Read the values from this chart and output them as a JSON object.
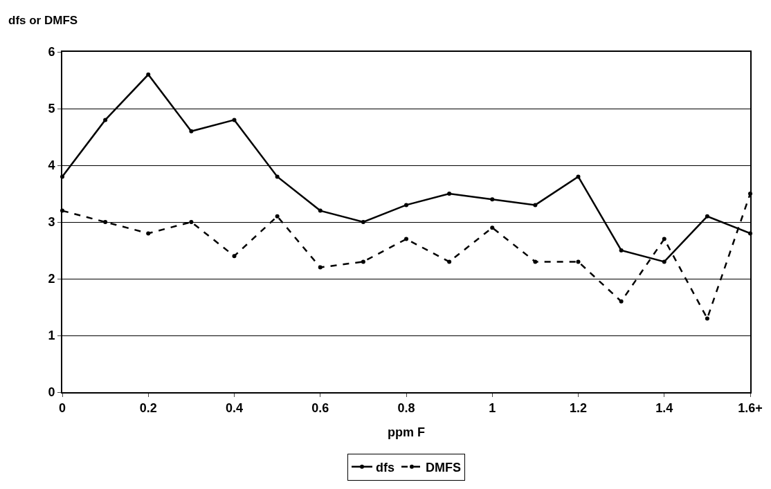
{
  "chart_data": {
    "type": "line",
    "ylabel": "dfs or DMFS",
    "xlabel": "ppm F",
    "categories": [
      "0",
      null,
      "0.2",
      null,
      "0.4",
      null,
      "0.6",
      null,
      "0.8",
      null,
      "1",
      null,
      "1.2",
      null,
      "1.4",
      null,
      "1.6+"
    ],
    "series": [
      {
        "name": "dfs",
        "color": "#000000",
        "line_style": "solid",
        "values": [
          3.8,
          4.8,
          5.6,
          4.6,
          4.8,
          3.8,
          3.2,
          3.0,
          3.3,
          3.5,
          3.4,
          3.3,
          3.8,
          2.5,
          2.3,
          3.1,
          2.8
        ]
      },
      {
        "name": "DMFS",
        "color": "#000000",
        "line_style": "dashed",
        "values": [
          3.2,
          3.0,
          2.8,
          3.0,
          2.4,
          3.1,
          2.2,
          2.3,
          2.7,
          2.3,
          2.9,
          2.3,
          2.3,
          1.6,
          2.7,
          1.3,
          3.5
        ]
      }
    ],
    "ylim": [
      0,
      6
    ],
    "yticks": [
      0,
      1,
      2,
      3,
      4,
      5,
      6
    ],
    "grid": "y",
    "legend": "bottom",
    "marker": "circle"
  }
}
